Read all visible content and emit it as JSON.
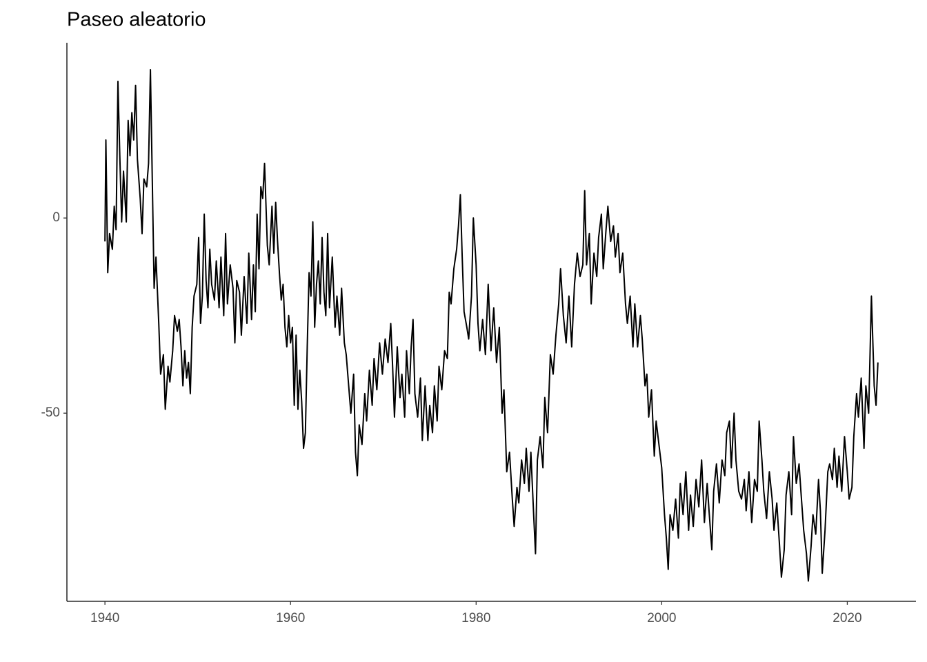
{
  "chart_data": {
    "type": "line",
    "title": "Paseo aleatorio",
    "color": "#000000",
    "xlim": [
      1935.9,
      2027.4
    ],
    "ylim": [
      -98.2,
      44.9
    ],
    "xticks": [
      1940,
      1960,
      1980,
      2000,
      2020
    ],
    "yticks": [
      0,
      -50
    ],
    "grid": false,
    "x": [
      1940.0,
      1940.1,
      1940.3,
      1940.5,
      1940.8,
      1941.0,
      1941.2,
      1941.4,
      1941.6,
      1941.8,
      1942.0,
      1942.3,
      1942.5,
      1942.7,
      1942.9,
      1943.1,
      1943.3,
      1943.5,
      1943.8,
      1944.0,
      1944.2,
      1944.5,
      1944.7,
      1944.9,
      1945.1,
      1945.3,
      1945.5,
      1945.8,
      1946.0,
      1946.3,
      1946.5,
      1946.8,
      1947.0,
      1947.3,
      1947.5,
      1947.8,
      1948.0,
      1948.2,
      1948.4,
      1948.6,
      1948.8,
      1949.0,
      1949.2,
      1949.4,
      1949.6,
      1949.9,
      1950.1,
      1950.3,
      1950.5,
      1950.7,
      1950.9,
      1951.1,
      1951.3,
      1951.5,
      1951.8,
      1952.0,
      1952.3,
      1952.5,
      1952.8,
      1953.0,
      1953.2,
      1953.5,
      1953.8,
      1954.0,
      1954.2,
      1954.5,
      1954.7,
      1955.0,
      1955.3,
      1955.5,
      1955.8,
      1956.0,
      1956.2,
      1956.4,
      1956.6,
      1956.8,
      1957.0,
      1957.2,
      1957.5,
      1957.7,
      1958.0,
      1958.2,
      1958.4,
      1958.6,
      1958.8,
      1959.0,
      1959.2,
      1959.4,
      1959.6,
      1959.8,
      1960.0,
      1960.2,
      1960.4,
      1960.6,
      1960.8,
      1961.0,
      1961.2,
      1961.4,
      1961.6,
      1961.8,
      1962.0,
      1962.2,
      1962.4,
      1962.6,
      1962.8,
      1963.0,
      1963.2,
      1963.4,
      1963.6,
      1963.8,
      1964.0,
      1964.2,
      1964.5,
      1964.8,
      1965.0,
      1965.3,
      1965.5,
      1965.8,
      1966.0,
      1966.3,
      1966.5,
      1966.8,
      1967.0,
      1967.2,
      1967.4,
      1967.7,
      1968.0,
      1968.2,
      1968.5,
      1968.8,
      1969.0,
      1969.3,
      1969.6,
      1969.9,
      1970.2,
      1970.5,
      1970.8,
      1971.0,
      1971.2,
      1971.5,
      1971.8,
      1972.0,
      1972.3,
      1972.5,
      1972.8,
      1973.0,
      1973.2,
      1973.4,
      1973.7,
      1974.0,
      1974.2,
      1974.5,
      1974.8,
      1975.0,
      1975.3,
      1975.5,
      1975.8,
      1976.0,
      1976.3,
      1976.6,
      1976.9,
      1977.1,
      1977.3,
      1977.6,
      1977.9,
      1978.1,
      1978.3,
      1978.5,
      1978.7,
      1979.0,
      1979.2,
      1979.5,
      1979.7,
      1980.0,
      1980.2,
      1980.4,
      1980.7,
      1981.0,
      1981.3,
      1981.6,
      1981.9,
      1982.2,
      1982.5,
      1982.8,
      1983.0,
      1983.3,
      1983.6,
      1983.9,
      1984.1,
      1984.4,
      1984.6,
      1984.9,
      1985.2,
      1985.4,
      1985.7,
      1985.9,
      1986.2,
      1986.4,
      1986.6,
      1986.9,
      1987.2,
      1987.4,
      1987.7,
      1988.0,
      1988.3,
      1988.6,
      1988.9,
      1989.1,
      1989.4,
      1989.7,
      1990.0,
      1990.3,
      1990.6,
      1990.9,
      1991.2,
      1991.5,
      1991.7,
      1991.9,
      1992.2,
      1992.4,
      1992.7,
      1993.0,
      1993.2,
      1993.5,
      1993.7,
      1994.0,
      1994.2,
      1994.5,
      1994.8,
      1995.0,
      1995.3,
      1995.5,
      1995.8,
      1996.1,
      1996.3,
      1996.6,
      1996.9,
      1997.1,
      1997.4,
      1997.7,
      1997.9,
      1998.2,
      1998.4,
      1998.6,
      1998.9,
      1999.2,
      1999.4,
      1999.7,
      2000.0,
      2000.3,
      2000.5,
      2000.7,
      2000.9,
      2001.2,
      2001.5,
      2001.8,
      2002.0,
      2002.3,
      2002.6,
      2002.9,
      2003.1,
      2003.4,
      2003.7,
      2004.0,
      2004.3,
      2004.6,
      2004.9,
      2005.1,
      2005.4,
      2005.6,
      2005.9,
      2006.2,
      2006.5,
      2006.8,
      2007.0,
      2007.3,
      2007.5,
      2007.8,
      2008.0,
      2008.3,
      2008.6,
      2008.9,
      2009.1,
      2009.4,
      2009.7,
      2010.0,
      2010.3,
      2010.5,
      2010.8,
      2011.0,
      2011.3,
      2011.6,
      2011.9,
      2012.1,
      2012.4,
      2012.7,
      2012.9,
      2013.2,
      2013.4,
      2013.7,
      2014.0,
      2014.2,
      2014.5,
      2014.8,
      2015.0,
      2015.3,
      2015.6,
      2015.8,
      2016.1,
      2016.3,
      2016.6,
      2016.9,
      2017.1,
      2017.3,
      2017.6,
      2017.9,
      2018.1,
      2018.4,
      2018.6,
      2018.9,
      2019.1,
      2019.4,
      2019.7,
      2020.0,
      2020.2,
      2020.5,
      2020.7,
      2021.0,
      2021.2,
      2021.5,
      2021.8,
      2022.0,
      2022.3,
      2022.6,
      2022.9,
      2023.1,
      2023.3
    ],
    "values": [
      -6,
      20,
      -14,
      -4,
      -8,
      3,
      -3,
      35,
      16,
      -1,
      12,
      -1,
      25,
      16,
      27,
      20,
      34,
      15,
      5,
      -4,
      10,
      8,
      14,
      38,
      10,
      -18,
      -10,
      -27,
      -40,
      -35,
      -49,
      -38,
      -42,
      -34,
      -25,
      -29,
      -26,
      -33,
      -43,
      -34,
      -41,
      -37,
      -45,
      -28,
      -20,
      -17,
      -5,
      -27,
      -20,
      1,
      -16,
      -23,
      -8,
      -17,
      -21,
      -11,
      -23,
      -10,
      -25,
      -4,
      -22,
      -12,
      -18,
      -32,
      -16,
      -19,
      -30,
      -15,
      -27,
      -9,
      -26,
      -12,
      -24,
      1,
      -13,
      8,
      5,
      14,
      -7,
      -12,
      3,
      -9,
      4,
      -6,
      -14,
      -21,
      -17,
      -28,
      -33,
      -25,
      -32,
      -28,
      -48,
      -30,
      -49,
      -39,
      -47,
      -59,
      -55,
      -33,
      -14,
      -20,
      -1,
      -28,
      -17,
      -11,
      -22,
      -5,
      -19,
      -25,
      -4,
      -23,
      -10,
      -28,
      -20,
      -30,
      -18,
      -32,
      -35,
      -44,
      -50,
      -40,
      -60,
      -66,
      -53,
      -58,
      -45,
      -52,
      -39,
      -48,
      -36,
      -44,
      -32,
      -40,
      -31,
      -37,
      -27,
      -38,
      -51,
      -33,
      -46,
      -40,
      -51,
      -34,
      -45,
      -33,
      -26,
      -45,
      -51,
      -41,
      -57,
      -43,
      -57,
      -48,
      -55,
      -43,
      -52,
      -38,
      -44,
      -34,
      -36,
      -19,
      -22,
      -13,
      -8,
      -2,
      6,
      -10,
      -24,
      -28,
      -31,
      -20,
      0,
      -12,
      -27,
      -34,
      -26,
      -35,
      -17,
      -34,
      -23,
      -37,
      -28,
      -50,
      -44,
      -65,
      -60,
      -72,
      -79,
      -69,
      -73,
      -62,
      -68,
      -59,
      -70,
      -60,
      -76,
      -86,
      -62,
      -56,
      -64,
      -46,
      -55,
      -35,
      -40,
      -30,
      -22,
      -13,
      -25,
      -32,
      -20,
      -33,
      -17,
      -9,
      -15,
      -12,
      7,
      -12,
      -4,
      -22,
      -9,
      -15,
      -5,
      1,
      -13,
      -3,
      3,
      -6,
      -2,
      -10,
      -4,
      -14,
      -9,
      -22,
      -27,
      -20,
      -33,
      -22,
      -33,
      -25,
      -31,
      -43,
      -40,
      -51,
      -44,
      -61,
      -52,
      -58,
      -64,
      -76,
      -82,
      -90,
      -76,
      -80,
      -72,
      -82,
      -68,
      -76,
      -65,
      -80,
      -71,
      -79,
      -67,
      -74,
      -62,
      -78,
      -68,
      -75,
      -85,
      -70,
      -63,
      -73,
      -62,
      -66,
      -55,
      -52,
      -64,
      -50,
      -62,
      -70,
      -72,
      -67,
      -75,
      -65,
      -78,
      -67,
      -70,
      -52,
      -62,
      -70,
      -77,
      -65,
      -72,
      -80,
      -73,
      -84,
      -92,
      -85,
      -71,
      -65,
      -76,
      -56,
      -68,
      -63,
      -70,
      -80,
      -86,
      -93,
      -84,
      -76,
      -81,
      -67,
      -75,
      -91,
      -80,
      -65,
      -63,
      -67,
      -59,
      -69,
      -61,
      -70,
      -56,
      -65,
      -72,
      -69,
      -56,
      -45,
      -51,
      -41,
      -59,
      -43,
      -50,
      -20,
      -43,
      -48,
      -37
    ]
  }
}
